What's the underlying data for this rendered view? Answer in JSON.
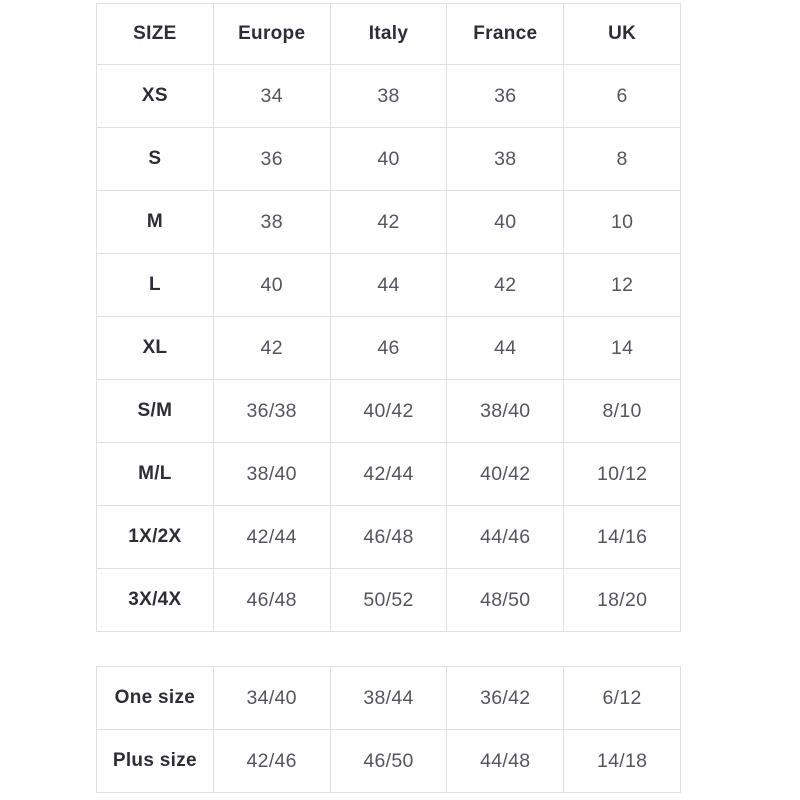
{
  "colors": {
    "border": "#dfdfdf",
    "header_text": "#2d2d36",
    "cell_text": "#55555e",
    "background": "#ffffff"
  },
  "chart_data": [
    {
      "type": "table",
      "columns": [
        "SIZE",
        "Europe",
        "Italy",
        "France",
        "UK"
      ],
      "rows": [
        [
          "XS",
          "34",
          "38",
          "36",
          "6"
        ],
        [
          "S",
          "36",
          "40",
          "38",
          "8"
        ],
        [
          "M",
          "38",
          "42",
          "40",
          "10"
        ],
        [
          "L",
          "40",
          "44",
          "42",
          "12"
        ],
        [
          "XL",
          "42",
          "46",
          "44",
          "14"
        ],
        [
          "S/M",
          "36/38",
          "40/42",
          "38/40",
          "8/10"
        ],
        [
          "M/L",
          "38/40",
          "42/44",
          "40/42",
          "10/12"
        ],
        [
          "1X/2X",
          "42/44",
          "46/48",
          "44/46",
          "14/16"
        ],
        [
          "3X/4X",
          "46/48",
          "50/52",
          "48/50",
          "18/20"
        ]
      ]
    },
    {
      "type": "table",
      "columns": [],
      "rows": [
        [
          "One size",
          "34/40",
          "38/44",
          "36/42",
          "6/12"
        ],
        [
          "Plus size",
          "42/46",
          "46/50",
          "44/48",
          "14/18"
        ]
      ]
    }
  ]
}
